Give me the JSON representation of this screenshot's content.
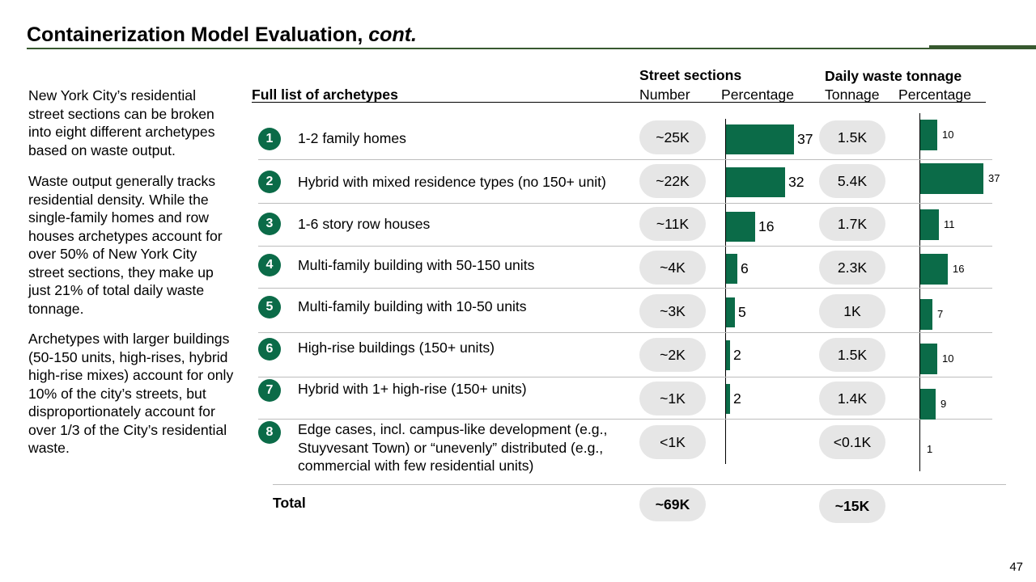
{
  "title": {
    "main": "Containerization Model Evaluation, ",
    "suffix": "cont."
  },
  "paragraphs": [
    "New York City’s residential street sections can be broken into eight different archetypes based on waste output.",
    "Waste output generally tracks residential density. While the single-family homes and row houses archetypes account for over 50% of New York City street sections, they make up just 21% of total daily waste tonnage.",
    "Archetypes with larger buildings (50-150 units, high-rises, hybrid high-rise mixes) account for only 10% of the city’s streets, but disproportionately account for over 1/3 of the City’s residential waste."
  ],
  "table": {
    "list_header": "Full list of archetypes",
    "street_header": "Street sections",
    "street_number_header": "Number",
    "street_pct_header": "Percentage",
    "waste_header": "Daily waste tonnage",
    "waste_tonnage_header": "Tonnage",
    "waste_pct_header": "Percentage",
    "rows": [
      {
        "num": "1",
        "label": "1-2 family homes",
        "street_number": "~25K",
        "street_pct": 37,
        "street_pct_label": "37",
        "tonnage": "1.5K",
        "waste_pct": 10,
        "waste_pct_label": "10"
      },
      {
        "num": "2",
        "label": "Hybrid with mixed residence types (no 150+ unit)",
        "street_number": "~22K",
        "street_pct": 32,
        "street_pct_label": "32",
        "tonnage": "5.4K",
        "waste_pct": 37,
        "waste_pct_label": "37"
      },
      {
        "num": "3",
        "label": "1-6 story row houses",
        "street_number": "~11K",
        "street_pct": 16,
        "street_pct_label": "16",
        "tonnage": "1.7K",
        "waste_pct": 11,
        "waste_pct_label": "11"
      },
      {
        "num": "4",
        "label": "Multi-family building with 50-150 units",
        "street_number": "~4K",
        "street_pct": 6,
        "street_pct_label": "6",
        "tonnage": "2.3K",
        "waste_pct": 16,
        "waste_pct_label": "16"
      },
      {
        "num": "5",
        "label": "Multi-family building with 10-50 units",
        "street_number": "~3K",
        "street_pct": 5,
        "street_pct_label": "5",
        "tonnage": "1K",
        "waste_pct": 7,
        "waste_pct_label": "7"
      },
      {
        "num": "6",
        "label": "High-rise buildings (150+ units)",
        "street_number": "~2K",
        "street_pct": 2,
        "street_pct_label": "2",
        "tonnage": "1.5K",
        "waste_pct": 10,
        "waste_pct_label": "10"
      },
      {
        "num": "7",
        "label": "Hybrid with 1+ high-rise (150+ units)",
        "street_number": "~1K",
        "street_pct": 2,
        "street_pct_label": "2",
        "tonnage": "1.4K",
        "waste_pct": 9,
        "waste_pct_label": "9"
      },
      {
        "num": "8",
        "label": "Edge cases, incl. campus-like development (e.g., Stuyvesant Town) or “unevenly” distributed (e.g., commercial with few residential units)",
        "street_number": "<1K",
        "street_pct": 0,
        "street_pct_label": "",
        "tonnage": "<0.1K",
        "waste_pct": 1,
        "waste_pct_label": "1"
      }
    ],
    "total_label": "Total",
    "total_street_number": "~69K",
    "total_tonnage": "~15K"
  },
  "chart_data": [
    {
      "type": "bar",
      "xlabel": "Street sections",
      "ylabel": "Percentage",
      "categories": [
        "1",
        "2",
        "3",
        "4",
        "5",
        "6",
        "7",
        "8"
      ],
      "values": [
        37,
        32,
        16,
        6,
        5,
        2,
        2,
        0
      ],
      "orientation": "horizontal",
      "bar_color": "#0b6b48"
    },
    {
      "type": "bar",
      "xlabel": "Daily waste tonnage",
      "ylabel": "Percentage",
      "categories": [
        "1",
        "2",
        "3",
        "4",
        "5",
        "6",
        "7",
        "8"
      ],
      "values": [
        10,
        37,
        11,
        16,
        7,
        10,
        9,
        1
      ],
      "orientation": "horizontal",
      "bar_color": "#0b6b48"
    }
  ],
  "page_number": "47"
}
